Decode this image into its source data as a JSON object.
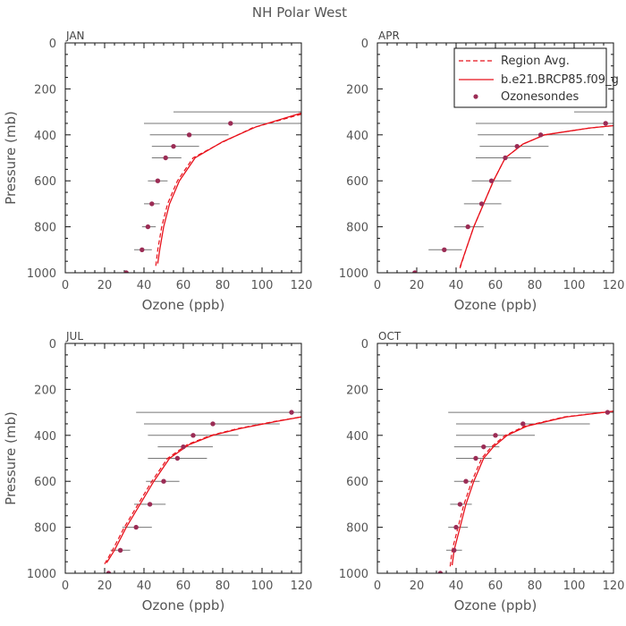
{
  "figure_title": "NH Polar West",
  "legend": {
    "region_avg": "Region Avg.",
    "model": "b.e21.BRCP85.f09_g",
    "sondes": "Ozonesondes"
  },
  "colors": {
    "model": "#e8101a",
    "sonde": "#9b2c55",
    "error_bar": "#777777",
    "axis": "#111111",
    "text": "#555555"
  },
  "chart_data": [
    {
      "type": "line",
      "title": "JAN",
      "xlabel": "Ozone (ppb)",
      "ylabel": "Pressure (mb)",
      "xlim": [
        0,
        120
      ],
      "ylim": [
        0,
        1000
      ],
      "y_inverted": true,
      "xticks": [
        0,
        20,
        40,
        60,
        80,
        100,
        120
      ],
      "yticks": [
        0,
        200,
        400,
        600,
        800,
        1000
      ],
      "region_avg": {
        "x": [
          46,
          47,
          49,
          52,
          57,
          65,
          78,
          95,
          120
        ],
        "y": [
          970,
          900,
          800,
          700,
          600,
          500,
          440,
          370,
          310
        ]
      },
      "model": {
        "x": [
          47,
          48,
          50,
          53,
          58,
          66,
          80,
          97,
          120
        ],
        "y": [
          960,
          900,
          800,
          700,
          600,
          500,
          430,
          365,
          305
        ]
      },
      "sondes": {
        "x": [
          31,
          39,
          42,
          44,
          47,
          51,
          55,
          63,
          84
        ],
        "y": [
          1000,
          900,
          800,
          700,
          600,
          500,
          450,
          400,
          350
        ],
        "xmin": [
          24,
          35,
          39,
          40,
          42,
          44,
          44,
          43,
          40
        ],
        "xmax": [
          38,
          44,
          46,
          48,
          52,
          59,
          68,
          83,
          120
        ]
      },
      "top_bar": {
        "y": 300,
        "xmin": 55,
        "xmax": 120
      }
    },
    {
      "type": "line",
      "title": "APR",
      "xlabel": "Ozone (ppb)",
      "ylabel": "Pressure (mb)",
      "xlim": [
        0,
        120
      ],
      "ylim": [
        0,
        1000
      ],
      "y_inverted": true,
      "xticks": [
        0,
        20,
        40,
        60,
        80,
        100,
        120
      ],
      "yticks": [
        0,
        200,
        400,
        600,
        800,
        1000
      ],
      "region_avg": {
        "x": [
          42,
          45,
          49,
          54,
          59,
          65,
          74,
          85,
          108,
          120
        ],
        "y": [
          980,
          900,
          800,
          700,
          600,
          500,
          440,
          400,
          370,
          360
        ]
      },
      "model": {
        "x": [
          42,
          45,
          49,
          54,
          59,
          65,
          74,
          85,
          108,
          120
        ],
        "y": [
          975,
          900,
          800,
          700,
          600,
          500,
          440,
          400,
          370,
          360
        ]
      },
      "sondes": {
        "x": [
          19,
          34,
          46,
          53,
          58,
          65,
          71,
          83,
          116
        ],
        "y": [
          1000,
          900,
          800,
          700,
          600,
          500,
          450,
          400,
          350
        ],
        "xmin": [
          8,
          26,
          39,
          44,
          48,
          50,
          52,
          51,
          50
        ],
        "xmax": [
          31,
          43,
          54,
          63,
          68,
          78,
          87,
          115,
          120
        ]
      },
      "top_bar": {
        "y": 300,
        "xmin": 100,
        "xmax": 120
      }
    },
    {
      "type": "line",
      "title": "JUL",
      "xlabel": "Ozone (ppb)",
      "ylabel": "Pressure (mb)",
      "xlim": [
        0,
        120
      ],
      "ylim": [
        0,
        1000
      ],
      "y_inverted": true,
      "xticks": [
        0,
        20,
        40,
        60,
        80,
        100,
        120
      ],
      "yticks": [
        0,
        200,
        400,
        600,
        800,
        1000
      ],
      "region_avg": {
        "x": [
          20,
          24,
          30,
          37,
          44,
          52,
          62,
          74,
          88,
          106,
          120
        ],
        "y": [
          960,
          900,
          800,
          700,
          600,
          500,
          440,
          400,
          370,
          340,
          320
        ]
      },
      "model": {
        "x": [
          21,
          25,
          31,
          38,
          45,
          53,
          63,
          75,
          89,
          107,
          120
        ],
        "y": [
          955,
          900,
          800,
          700,
          600,
          500,
          440,
          400,
          370,
          340,
          320
        ]
      },
      "sondes": {
        "x": [
          22,
          28,
          36,
          43,
          50,
          57,
          60,
          65,
          75,
          115
        ],
        "y": [
          1000,
          900,
          800,
          700,
          600,
          500,
          450,
          400,
          350,
          300
        ],
        "xmin": [
          18,
          23,
          29,
          35,
          41,
          42,
          47,
          42,
          40,
          36
        ],
        "xmax": [
          27,
          33,
          44,
          51,
          58,
          72,
          75,
          88,
          109,
          120
        ]
      },
      "top_bar": null
    },
    {
      "type": "line",
      "title": "OCT",
      "xlabel": "Ozone (ppb)",
      "ylabel": "Pressure (mb)",
      "xlim": [
        0,
        120
      ],
      "ylim": [
        0,
        1000
      ],
      "y_inverted": true,
      "xticks": [
        0,
        20,
        40,
        60,
        80,
        100,
        120
      ],
      "yticks": [
        0,
        200,
        400,
        600,
        800,
        1000
      ],
      "region_avg": {
        "x": [
          37,
          38,
          41,
          44,
          48,
          53,
          58,
          65,
          75,
          95,
          120
        ],
        "y": [
          970,
          900,
          800,
          700,
          600,
          500,
          450,
          400,
          360,
          320,
          295
        ]
      },
      "model": {
        "x": [
          38,
          39,
          42,
          45,
          49,
          54,
          59,
          66,
          76,
          96,
          120
        ],
        "y": [
          965,
          900,
          800,
          700,
          600,
          500,
          450,
          400,
          360,
          320,
          295
        ]
      },
      "sondes": {
        "x": [
          32,
          39,
          40,
          42,
          45,
          50,
          54,
          60,
          74,
          117
        ],
        "y": [
          1000,
          900,
          800,
          700,
          600,
          500,
          450,
          400,
          350,
          300
        ],
        "xmin": [
          27,
          35,
          36,
          37,
          39,
          40,
          39,
          40,
          40,
          36
        ],
        "xmax": [
          37,
          43,
          46,
          48,
          52,
          58,
          62,
          80,
          108,
          120
        ]
      },
      "top_bar": null
    }
  ]
}
